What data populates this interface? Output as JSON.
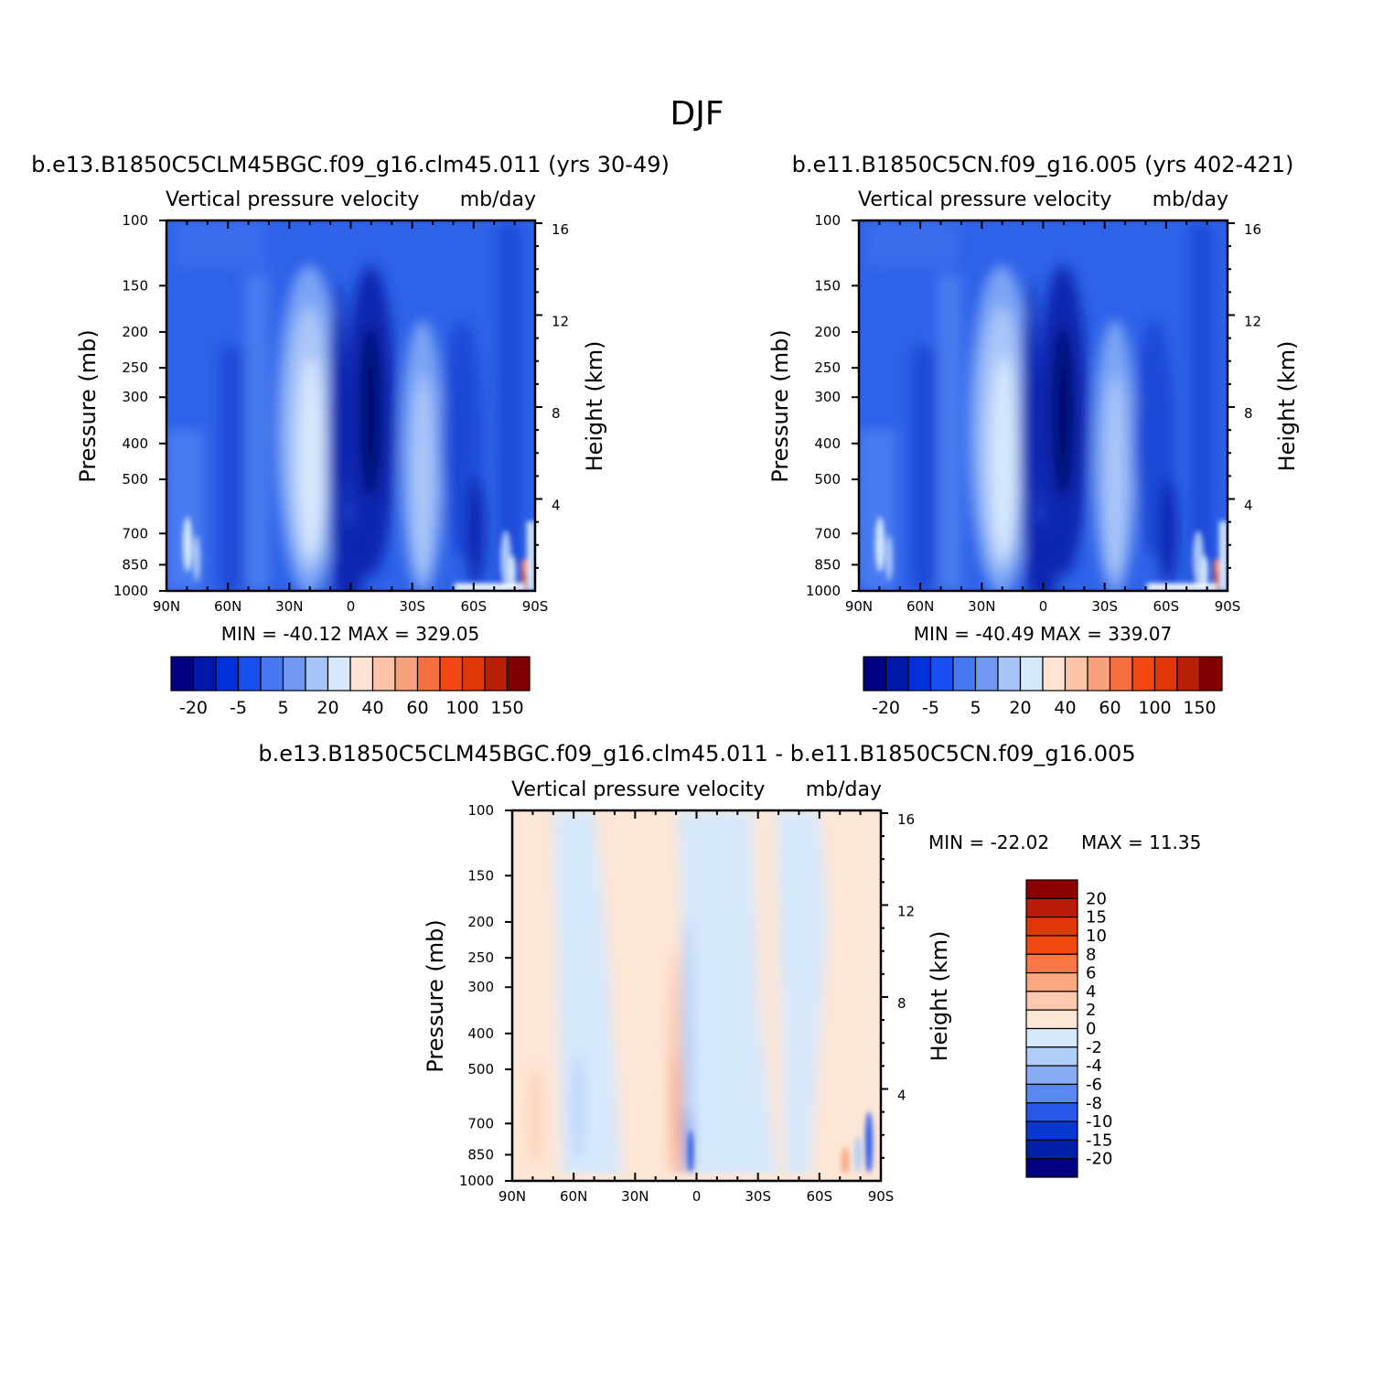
{
  "figure": {
    "title": "DJF"
  },
  "chart_data": [
    {
      "type": "heatmap",
      "title": "b.e13.B1850C5CLM45BGC.f09_g16.clm45.011 (yrs 30-49)",
      "subtitle_left": "Vertical pressure velocity",
      "subtitle_right": "mb/day",
      "ylabel": "Pressure (mb)",
      "ylabel_right": "Height (km)",
      "x_ticks": [
        "90N",
        "60N",
        "30N",
        "0",
        "30S",
        "60S",
        "90S"
      ],
      "y_ticks": [
        100,
        150,
        200,
        250,
        300,
        400,
        500,
        700,
        850,
        1000
      ],
      "y_right_ticks": [
        4,
        8,
        12,
        16
      ],
      "stats": "MIN =  -40.12   MAX =  329.05",
      "colorbar": {
        "orientation": "horizontal",
        "colors": [
          "#000080",
          "#0018a8",
          "#0030d8",
          "#1850f0",
          "#4878f0",
          "#7098f0",
          "#a8c4f8",
          "#d6e8fc",
          "#fde4d2",
          "#fbc4a8",
          "#f9a07c",
          "#f77040",
          "#f04810",
          "#e03808",
          "#b82008",
          "#800000"
        ],
        "labels": [
          "-20",
          "-5",
          "5",
          "20",
          "40",
          "60",
          "100",
          "150"
        ]
      }
    },
    {
      "type": "heatmap",
      "title": "b.e11.B1850C5CN.f09_g16.005 (yrs 402-421)",
      "subtitle_left": "Vertical pressure velocity",
      "subtitle_right": "mb/day",
      "ylabel": "Pressure (mb)",
      "ylabel_right": "Height (km)",
      "x_ticks": [
        "90N",
        "60N",
        "30N",
        "0",
        "30S",
        "60S",
        "90S"
      ],
      "y_ticks": [
        100,
        150,
        200,
        250,
        300,
        400,
        500,
        700,
        850,
        1000
      ],
      "y_right_ticks": [
        4,
        8,
        12,
        16
      ],
      "stats": "MIN =  -40.49   MAX =  339.07",
      "colorbar": {
        "orientation": "horizontal",
        "colors": [
          "#000080",
          "#0018a8",
          "#0030d8",
          "#1850f0",
          "#4878f0",
          "#7098f0",
          "#a8c4f8",
          "#d6e8fc",
          "#fde4d2",
          "#fbc4a8",
          "#f9a07c",
          "#f77040",
          "#f04810",
          "#e03808",
          "#b82008",
          "#800000"
        ],
        "labels": [
          "-20",
          "-5",
          "5",
          "20",
          "40",
          "60",
          "100",
          "150"
        ]
      }
    },
    {
      "type": "heatmap",
      "title": "b.e13.B1850C5CLM45BGC.f09_g16.clm45.011 - b.e11.B1850C5CN.f09_g16.005",
      "subtitle_left": "Vertical pressure velocity",
      "subtitle_right": "mb/day",
      "ylabel": "Pressure (mb)",
      "ylabel_right": "Height (km)",
      "x_ticks": [
        "90N",
        "60N",
        "30N",
        "0",
        "30S",
        "60S",
        "90S"
      ],
      "y_ticks": [
        100,
        150,
        200,
        250,
        300,
        400,
        500,
        700,
        850,
        1000
      ],
      "y_right_ticks": [
        4,
        8,
        12,
        16
      ],
      "stats_min": "MIN =  -22.02",
      "stats_max": "MAX =   11.35",
      "colorbar": {
        "orientation": "vertical",
        "colors": [
          "#8b0000",
          "#b81c08",
          "#e03808",
          "#f04a10",
          "#f87848",
          "#fba880",
          "#fcc8ae",
          "#fde6d6",
          "#d6e8fc",
          "#b0ccf8",
          "#88acf4",
          "#5888f0",
          "#2858e8",
          "#0838d0",
          "#0020a8",
          "#000080"
        ],
        "labels": [
          "20",
          "15",
          "10",
          "8",
          "6",
          "4",
          "2",
          "0",
          "-2",
          "-4",
          "-6",
          "-8",
          "-10",
          "-15",
          "-20"
        ]
      }
    }
  ]
}
